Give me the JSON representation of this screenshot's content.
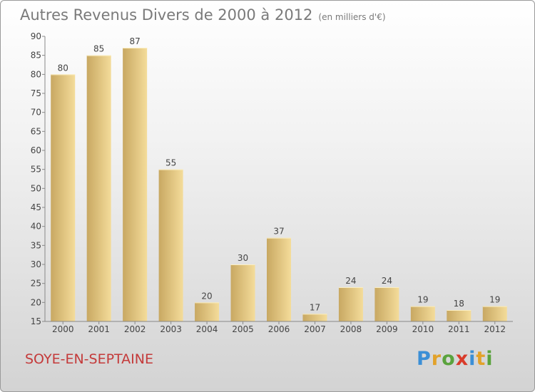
{
  "header": {
    "title": "Autres Revenus Divers de 2000 à 2012",
    "unit": "(en milliers d'€)"
  },
  "commune": "SOYE-EN-SEPTAINE",
  "brand": {
    "letters": [
      {
        "char": "P",
        "color": "#3b8fd6"
      },
      {
        "char": "r",
        "color": "#e2a22a"
      },
      {
        "char": "o",
        "color": "#5aa33d"
      },
      {
        "char": "x",
        "color": "#d93b2a"
      },
      {
        "char": "i",
        "color": "#3b8fd6"
      },
      {
        "char": "t",
        "color": "#e2a22a"
      },
      {
        "char": "i",
        "color": "#5aa33d"
      }
    ]
  },
  "chart_data": {
    "type": "bar",
    "categories": [
      "2000",
      "2001",
      "2002",
      "2003",
      "2004",
      "2005",
      "2006",
      "2007",
      "2008",
      "2009",
      "2010",
      "2011",
      "2012"
    ],
    "values": [
      80,
      85,
      87,
      55,
      20,
      30,
      37,
      17,
      24,
      24,
      19,
      18,
      19
    ],
    "ylim": [
      15,
      90
    ],
    "yticks": [
      15,
      20,
      25,
      30,
      35,
      40,
      45,
      50,
      55,
      60,
      65,
      70,
      75,
      80,
      85,
      90
    ],
    "grid": false,
    "legend": "none",
    "colors": {
      "bar_light": "#f4dc9a",
      "bar_dark": "#c8a862",
      "axis": "#888888",
      "text": "#444444"
    }
  }
}
